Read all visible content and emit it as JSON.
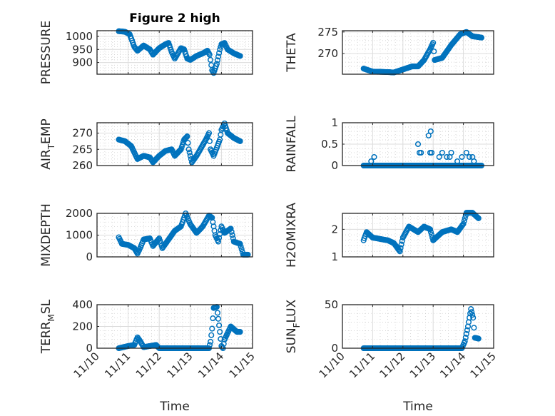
{
  "chart_data": [
    {
      "type": "scatter",
      "title": "Figure 2 high",
      "ylabel": {
        "main": "PRESSURE",
        "sub": "",
        "rest": ""
      },
      "ylim": [
        855,
        1022
      ],
      "yticks": [
        900,
        950,
        1000
      ],
      "xlabel": "",
      "xlim": [
        0,
        5
      ],
      "series_color": "#0072BD",
      "keyframes": [
        [
          10.7,
          1020
        ],
        [
          10.9,
          1018
        ],
        [
          11.05,
          1008
        ],
        [
          11.2,
          960
        ],
        [
          11.3,
          945
        ],
        [
          11.5,
          965
        ],
        [
          11.7,
          950
        ],
        [
          11.8,
          930
        ],
        [
          12.0,
          955
        ],
        [
          12.2,
          970
        ],
        [
          12.3,
          975
        ],
        [
          12.4,
          940
        ],
        [
          12.5,
          915
        ],
        [
          12.7,
          955
        ],
        [
          12.8,
          950
        ],
        [
          12.9,
          915
        ],
        [
          13.0,
          910
        ],
        [
          13.2,
          925
        ],
        [
          13.4,
          935
        ],
        [
          13.55,
          945
        ],
        [
          13.62,
          930
        ],
        [
          13.7,
          870
        ],
        [
          13.75,
          860
        ],
        [
          13.85,
          895
        ],
        [
          13.95,
          950
        ],
        [
          14.0,
          970
        ],
        [
          14.1,
          975
        ],
        [
          14.2,
          950
        ],
        [
          14.4,
          935
        ],
        [
          14.6,
          925
        ]
      ]
    },
    {
      "type": "scatter",
      "title": "",
      "ylabel": {
        "main": "THETA",
        "sub": "",
        "rest": ""
      },
      "ylim": [
        265.2,
        275.3
      ],
      "yticks": [
        270,
        275
      ],
      "xlabel": "",
      "xlim": [
        0,
        5
      ],
      "series_color": "#0072BD",
      "keyframes": [
        [
          10.7,
          266.5
        ],
        [
          11.0,
          265.8
        ],
        [
          11.5,
          265.7
        ],
        [
          11.7,
          265.6
        ],
        [
          12.0,
          266.3
        ],
        [
          12.3,
          267
        ],
        [
          12.5,
          267
        ],
        [
          12.7,
          268.5
        ],
        [
          12.9,
          271
        ],
        [
          13.0,
          272.5
        ],
        [
          13.05,
          268.5
        ],
        [
          13.3,
          269
        ],
        [
          13.6,
          272
        ],
        [
          13.9,
          274.5
        ],
        [
          14.1,
          275
        ],
        [
          14.3,
          274
        ],
        [
          14.6,
          273.7
        ]
      ]
    },
    {
      "type": "scatter",
      "title": "",
      "ylabel": {
        "main": "AIR",
        "sub": "T",
        "rest": "EMP"
      },
      "ylim": [
        260,
        273.2
      ],
      "yticks": [
        260,
        265,
        270
      ],
      "xlabel": "",
      "xlim": [
        0,
        5
      ],
      "series_color": "#0072BD",
      "keyframes": [
        [
          10.7,
          268
        ],
        [
          10.9,
          267.5
        ],
        [
          11.1,
          266
        ],
        [
          11.3,
          262
        ],
        [
          11.5,
          263
        ],
        [
          11.7,
          262.5
        ],
        [
          11.8,
          261
        ],
        [
          12.0,
          263
        ],
        [
          12.2,
          264.5
        ],
        [
          12.4,
          265
        ],
        [
          12.5,
          263
        ],
        [
          12.7,
          265
        ],
        [
          12.8,
          268
        ],
        [
          12.9,
          269
        ],
        [
          12.95,
          265
        ],
        [
          13.0,
          263
        ],
        [
          13.05,
          261
        ],
        [
          13.2,
          263
        ],
        [
          13.5,
          268
        ],
        [
          13.6,
          270
        ],
        [
          13.65,
          265
        ],
        [
          13.75,
          263
        ],
        [
          13.95,
          268
        ],
        [
          14.0,
          271
        ],
        [
          14.1,
          273
        ],
        [
          14.2,
          270
        ],
        [
          14.4,
          268.5
        ],
        [
          14.6,
          267.5
        ]
      ]
    },
    {
      "type": "scatter",
      "title": "",
      "ylabel": {
        "main": "RAINFALL",
        "sub": "",
        "rest": ""
      },
      "ylim": [
        0,
        1
      ],
      "yticks": [
        0,
        0.5,
        1
      ],
      "xlabel": "",
      "xlim": [
        0,
        5
      ],
      "series_color": "#0072BD",
      "keyframes": [
        [
          10.7,
          0
        ],
        [
          14.6,
          0
        ]
      ],
      "extra_points": [
        [
          10.95,
          0.1
        ],
        [
          11.05,
          0.2
        ],
        [
          12.5,
          0.5
        ],
        [
          12.55,
          0.3
        ],
        [
          12.6,
          0.3
        ],
        [
          12.85,
          0.7
        ],
        [
          12.92,
          0.8
        ],
        [
          12.9,
          0.3
        ],
        [
          12.95,
          0.3
        ],
        [
          13.2,
          0.2
        ],
        [
          13.3,
          0.3
        ],
        [
          13.45,
          0.2
        ],
        [
          13.55,
          0.2
        ],
        [
          13.6,
          0.3
        ],
        [
          13.8,
          0.1
        ],
        [
          13.95,
          0.2
        ],
        [
          14.1,
          0.3
        ],
        [
          14.2,
          0.2
        ],
        [
          14.3,
          0.2
        ],
        [
          14.35,
          0.1
        ]
      ]
    },
    {
      "type": "scatter",
      "title": "",
      "ylabel": {
        "main": "MIXDEPTH",
        "sub": "",
        "rest": ""
      },
      "ylim": [
        0,
        2000
      ],
      "yticks": [
        0,
        1000,
        2000
      ],
      "xlabel": "",
      "xlim": [
        0,
        5
      ],
      "series_color": "#0072BD",
      "keyframes": [
        [
          10.7,
          900
        ],
        [
          10.8,
          600
        ],
        [
          11.0,
          550
        ],
        [
          11.2,
          400
        ],
        [
          11.3,
          150
        ],
        [
          11.4,
          450
        ],
        [
          11.5,
          800
        ],
        [
          11.7,
          850
        ],
        [
          11.8,
          500
        ],
        [
          12.0,
          850
        ],
        [
          12.1,
          400
        ],
        [
          12.3,
          800
        ],
        [
          12.5,
          1200
        ],
        [
          12.7,
          1400
        ],
        [
          12.85,
          2000
        ],
        [
          13.0,
          1500
        ],
        [
          13.2,
          1100
        ],
        [
          13.4,
          1400
        ],
        [
          13.6,
          1900
        ],
        [
          13.7,
          1800
        ],
        [
          13.8,
          1000
        ],
        [
          13.9,
          700
        ],
        [
          14.0,
          1400
        ],
        [
          14.1,
          1100
        ],
        [
          14.3,
          1300
        ],
        [
          14.4,
          700
        ],
        [
          14.6,
          600
        ],
        [
          14.7,
          100
        ],
        [
          14.85,
          100
        ]
      ]
    },
    {
      "type": "scatter",
      "title": "",
      "ylabel": {
        "main": "H2OMIXRA",
        "sub": "",
        "rest": ""
      },
      "ylim": [
        1,
        2.58
      ],
      "yticks": [
        1,
        2
      ],
      "xlabel": "",
      "xlim": [
        0,
        5
      ],
      "series_color": "#0072BD",
      "keyframes": [
        [
          10.7,
          1.6
        ],
        [
          10.8,
          1.9
        ],
        [
          11.0,
          1.7
        ],
        [
          11.5,
          1.6
        ],
        [
          11.7,
          1.5
        ],
        [
          11.9,
          1.2
        ],
        [
          12.0,
          1.7
        ],
        [
          12.2,
          2.1
        ],
        [
          12.5,
          1.9
        ],
        [
          12.7,
          2.1
        ],
        [
          12.9,
          2.0
        ],
        [
          13.0,
          1.6
        ],
        [
          13.3,
          1.9
        ],
        [
          13.6,
          2.0
        ],
        [
          13.8,
          1.9
        ],
        [
          14.0,
          2.2
        ],
        [
          14.1,
          2.6
        ],
        [
          14.3,
          2.6
        ],
        [
          14.5,
          2.4
        ]
      ]
    },
    {
      "type": "scatter",
      "title": "",
      "ylabel": {
        "main": "TERR",
        "sub": "M",
        "rest": "SL"
      },
      "ylim": [
        0,
        400
      ],
      "yticks": [
        0,
        200,
        400
      ],
      "xlabel": "Time",
      "xlim": [
        0,
        5
      ],
      "series_color": "#0072BD",
      "keyframes": [
        [
          10.7,
          0
        ],
        [
          11.0,
          20
        ],
        [
          11.2,
          30
        ],
        [
          11.3,
          100
        ],
        [
          11.4,
          60
        ],
        [
          11.5,
          10
        ],
        [
          11.9,
          30
        ],
        [
          12.0,
          0
        ],
        [
          13.6,
          0
        ],
        [
          13.65,
          60
        ],
        [
          13.7,
          180
        ],
        [
          13.75,
          370
        ],
        [
          13.85,
          380
        ],
        [
          13.9,
          270
        ],
        [
          13.95,
          150
        ],
        [
          14.0,
          20
        ],
        [
          14.05,
          0
        ],
        [
          14.1,
          80
        ],
        [
          14.3,
          200
        ],
        [
          14.5,
          150
        ],
        [
          14.6,
          150
        ]
      ]
    },
    {
      "type": "scatter",
      "title": "",
      "ylabel": {
        "main": "SUN",
        "sub": "F",
        "rest": "LUX"
      },
      "ylim": [
        0,
        50
      ],
      "yticks": [
        0,
        50
      ],
      "xlabel": "Time",
      "xlim": [
        0,
        5
      ],
      "series_color": "#0072BD",
      "keyframes": [
        [
          10.7,
          0
        ],
        [
          13.95,
          0
        ],
        [
          14.05,
          8
        ],
        [
          14.15,
          25
        ],
        [
          14.25,
          45
        ],
        [
          14.32,
          35
        ],
        [
          14.38,
          12
        ],
        [
          14.5,
          11
        ]
      ]
    }
  ],
  "xticks": [
    "11/10",
    "11/11",
    "11/12",
    "11/13",
    "11/14",
    "11/15"
  ]
}
